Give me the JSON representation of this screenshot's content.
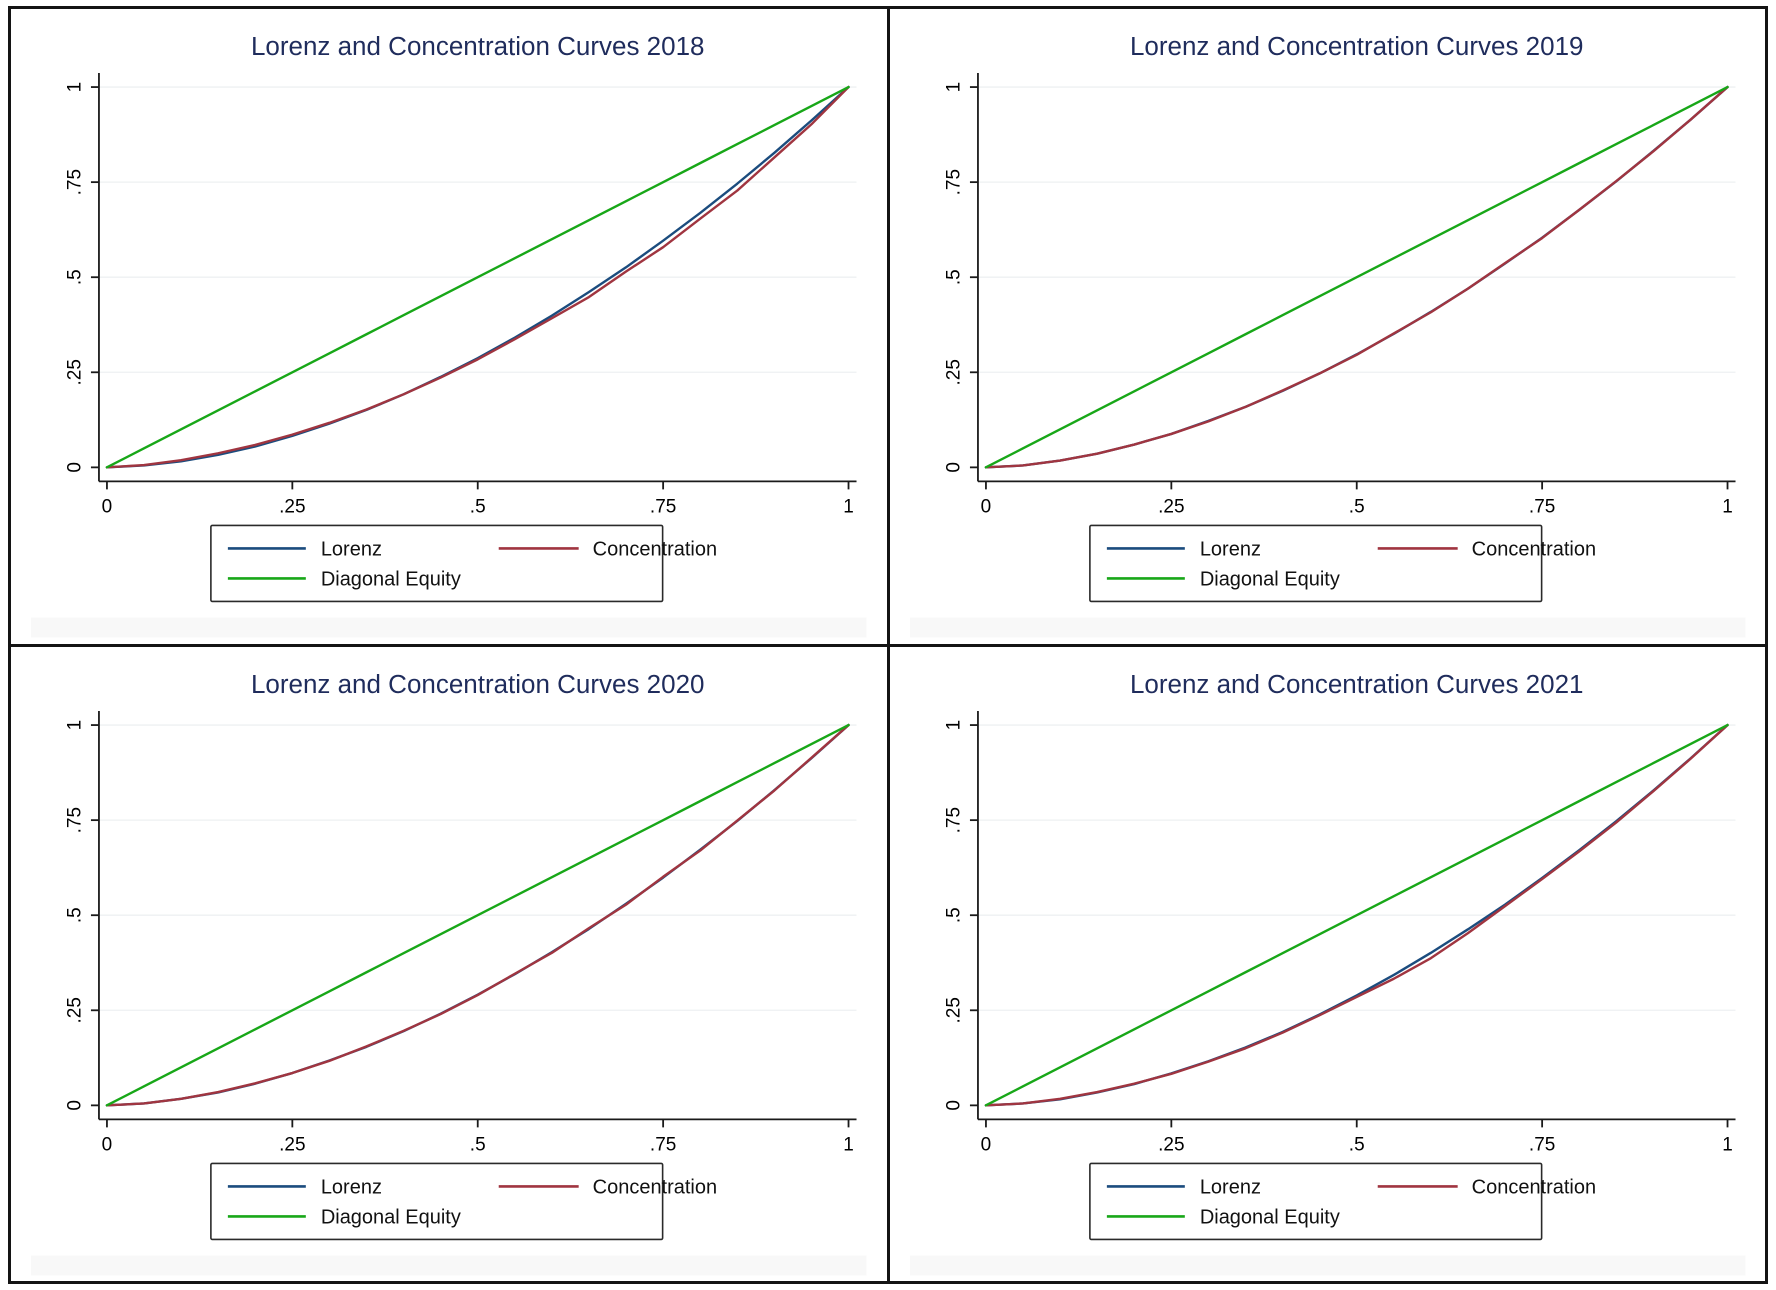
{
  "colors": {
    "lorenz": "#1b4c7e",
    "concentration": "#a03540",
    "diagonal": "#18a718",
    "title": "#1f2c5c",
    "axis": "#1a1a1a",
    "tick_label": "#000000",
    "grid": "#eef1f2",
    "legend_border": "#2a2a2a",
    "frame": "#141414",
    "artifact_band": "#f2f2f2"
  },
  "axes": {
    "xlim": [
      0,
      1
    ],
    "ylim": [
      0,
      1
    ],
    "x_ticks": [
      {
        "v": 0,
        "label": "0"
      },
      {
        "v": 0.25,
        "label": ".25"
      },
      {
        "v": 0.5,
        "label": ".5"
      },
      {
        "v": 0.75,
        "label": ".75"
      },
      {
        "v": 1,
        "label": "1"
      }
    ],
    "y_ticks": [
      {
        "v": 0,
        "label": "0"
      },
      {
        "v": 0.25,
        "label": ".25"
      },
      {
        "v": 0.5,
        "label": ".5"
      },
      {
        "v": 0.75,
        "label": ".75"
      },
      {
        "v": 1,
        "label": "1"
      }
    ],
    "grid": "horizontal-faint",
    "y_label_rotation": -90
  },
  "legend": {
    "position": "below-plot",
    "items": [
      {
        "label": "Lorenz",
        "color_key": "lorenz"
      },
      {
        "label": "Concentration",
        "color_key": "concentration"
      },
      {
        "label": "Diagonal Equity",
        "color_key": "diagonal"
      }
    ]
  },
  "chart_data": [
    {
      "type": "line",
      "year": "2018",
      "title": "Lorenz and Concentration Curves 2018",
      "x": [
        0,
        0.05,
        0.1,
        0.15,
        0.2,
        0.25,
        0.3,
        0.35,
        0.4,
        0.45,
        0.5,
        0.55,
        0.6,
        0.65,
        0.7,
        0.75,
        0.8,
        0.85,
        0.9,
        0.95,
        1
      ],
      "series": [
        {
          "name": "Lorenz",
          "color_key": "lorenz",
          "values": [
            0,
            0.005,
            0.016,
            0.033,
            0.055,
            0.083,
            0.115,
            0.151,
            0.192,
            0.238,
            0.287,
            0.341,
            0.399,
            0.461,
            0.526,
            0.596,
            0.669,
            0.746,
            0.827,
            0.912,
            1
          ]
        },
        {
          "name": "Concentration",
          "color_key": "concentration",
          "values": [
            0,
            0.006,
            0.019,
            0.037,
            0.059,
            0.086,
            0.117,
            0.152,
            0.192,
            0.236,
            0.284,
            0.337,
            0.392,
            0.448,
            0.515,
            0.579,
            0.654,
            0.728,
            0.815,
            0.902,
            1
          ]
        },
        {
          "name": "Diagonal Equity",
          "color_key": "diagonal",
          "values": [
            0,
            0.05,
            0.1,
            0.15,
            0.2,
            0.25,
            0.3,
            0.35,
            0.4,
            0.45,
            0.5,
            0.55,
            0.6,
            0.65,
            0.7,
            0.75,
            0.8,
            0.85,
            0.9,
            0.95,
            1
          ]
        }
      ]
    },
    {
      "type": "line",
      "year": "2019",
      "title": "Lorenz and Concentration Curves 2019",
      "x": [
        0,
        0.05,
        0.1,
        0.15,
        0.2,
        0.25,
        0.3,
        0.35,
        0.4,
        0.45,
        0.5,
        0.55,
        0.6,
        0.65,
        0.7,
        0.75,
        0.8,
        0.85,
        0.9,
        0.95,
        1
      ],
      "series": [
        {
          "name": "Lorenz",
          "color_key": "lorenz",
          "values": [
            0,
            0.005,
            0.018,
            0.036,
            0.06,
            0.088,
            0.122,
            0.159,
            0.201,
            0.247,
            0.297,
            0.351,
            0.409,
            0.47,
            0.536,
            0.604,
            0.677,
            0.752,
            0.832,
            0.914,
            1
          ]
        },
        {
          "name": "Concentration",
          "color_key": "concentration",
          "values": [
            0,
            0.005,
            0.018,
            0.036,
            0.06,
            0.088,
            0.121,
            0.159,
            0.202,
            0.247,
            0.296,
            0.352,
            0.408,
            0.47,
            0.537,
            0.603,
            0.677,
            0.753,
            0.831,
            0.914,
            1
          ]
        },
        {
          "name": "Diagonal Equity",
          "color_key": "diagonal",
          "values": [
            0,
            0.05,
            0.1,
            0.15,
            0.2,
            0.25,
            0.3,
            0.35,
            0.4,
            0.45,
            0.5,
            0.55,
            0.6,
            0.65,
            0.7,
            0.75,
            0.8,
            0.85,
            0.9,
            0.95,
            1
          ]
        }
      ]
    },
    {
      "type": "line",
      "year": "2020",
      "title": "Lorenz and Concentration Curves 2020",
      "x": [
        0,
        0.05,
        0.1,
        0.15,
        0.2,
        0.25,
        0.3,
        0.35,
        0.4,
        0.45,
        0.5,
        0.55,
        0.6,
        0.65,
        0.7,
        0.75,
        0.8,
        0.85,
        0.9,
        0.95,
        1
      ],
      "series": [
        {
          "name": "Lorenz",
          "color_key": "lorenz",
          "values": [
            0,
            0.005,
            0.017,
            0.034,
            0.057,
            0.085,
            0.118,
            0.154,
            0.195,
            0.241,
            0.291,
            0.345,
            0.403,
            0.464,
            0.53,
            0.599,
            0.672,
            0.748,
            0.829,
            0.913,
            1
          ]
        },
        {
          "name": "Concentration",
          "color_key": "concentration",
          "values": [
            0,
            0.005,
            0.017,
            0.035,
            0.058,
            0.085,
            0.117,
            0.155,
            0.196,
            0.24,
            0.29,
            0.346,
            0.401,
            0.466,
            0.528,
            0.601,
            0.67,
            0.749,
            0.828,
            0.914,
            1
          ]
        },
        {
          "name": "Diagonal Equity",
          "color_key": "diagonal",
          "values": [
            0,
            0.05,
            0.1,
            0.15,
            0.2,
            0.25,
            0.3,
            0.35,
            0.4,
            0.45,
            0.5,
            0.55,
            0.6,
            0.65,
            0.7,
            0.75,
            0.8,
            0.85,
            0.9,
            0.95,
            1
          ]
        }
      ]
    },
    {
      "type": "line",
      "year": "2021",
      "title": "Lorenz and Concentration Curves 2021",
      "x": [
        0,
        0.05,
        0.1,
        0.15,
        0.2,
        0.25,
        0.3,
        0.35,
        0.4,
        0.45,
        0.5,
        0.55,
        0.6,
        0.65,
        0.7,
        0.75,
        0.8,
        0.85,
        0.9,
        0.95,
        1
      ],
      "series": [
        {
          "name": "Lorenz",
          "color_key": "lorenz",
          "values": [
            0,
            0.005,
            0.016,
            0.034,
            0.056,
            0.084,
            0.116,
            0.152,
            0.193,
            0.239,
            0.289,
            0.343,
            0.401,
            0.463,
            0.528,
            0.598,
            0.671,
            0.747,
            0.828,
            0.912,
            1
          ]
        },
        {
          "name": "Concentration",
          "color_key": "concentration",
          "values": [
            0,
            0.005,
            0.017,
            0.035,
            0.057,
            0.083,
            0.115,
            0.15,
            0.191,
            0.237,
            0.285,
            0.333,
            0.387,
            0.453,
            0.524,
            0.595,
            0.668,
            0.744,
            0.826,
            0.911,
            1
          ]
        },
        {
          "name": "Diagonal Equity",
          "color_key": "diagonal",
          "values": [
            0,
            0.05,
            0.1,
            0.15,
            0.2,
            0.25,
            0.3,
            0.35,
            0.4,
            0.45,
            0.5,
            0.55,
            0.6,
            0.65,
            0.7,
            0.75,
            0.8,
            0.85,
            0.9,
            0.95,
            1
          ]
        }
      ]
    }
  ]
}
